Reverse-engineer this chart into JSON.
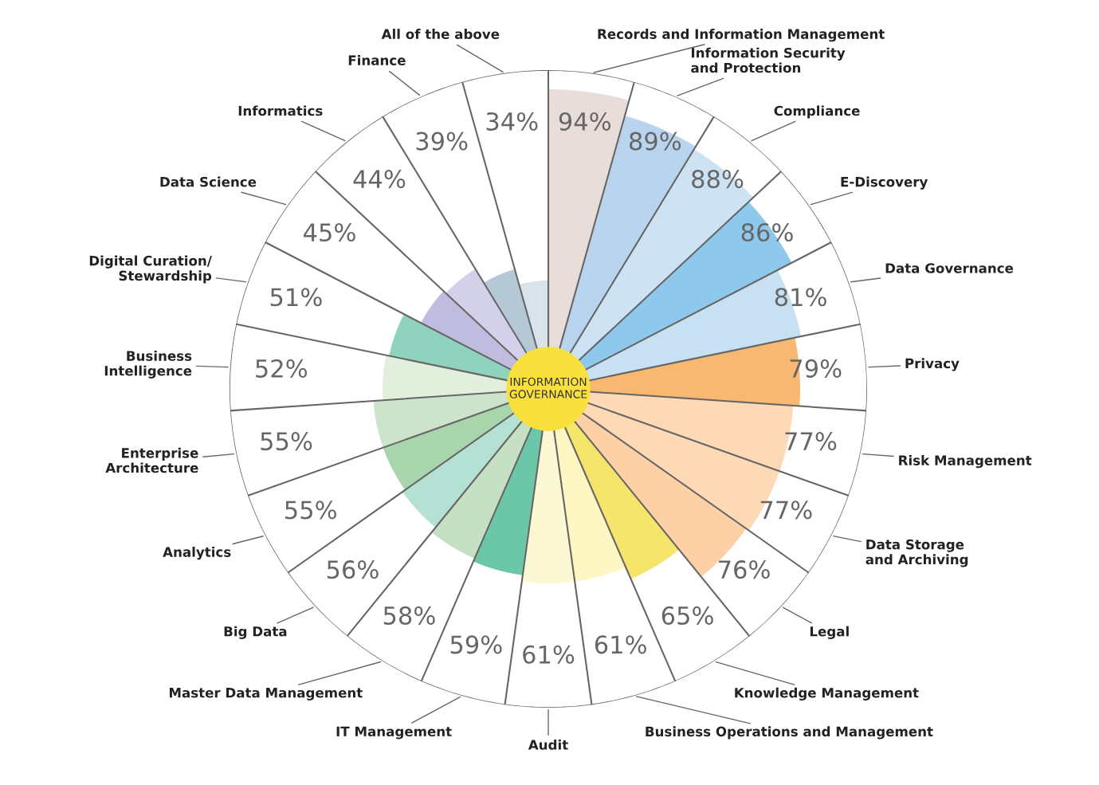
{
  "chart_data": {
    "type": "other",
    "title": "INFORMATION\nGOVERNANCE",
    "categories": [
      "Records and Information Management",
      "Information Security\nand Protection",
      "Compliance",
      "E-Discovery",
      "Data Governance",
      "Privacy",
      "Risk Management",
      "Data Storage\nand Archiving",
      "Legal",
      "Knowledge Management",
      "Business Operations and Management",
      "Audit",
      "IT Management",
      "Master Data Management",
      "Big Data",
      "Analytics",
      "Enterprise\nArchitecture",
      "Business\nIntelligence",
      "Digital Curation/\nStewardship",
      "Data Science",
      "Informatics",
      "Finance",
      "All of the above"
    ],
    "values": [
      94,
      89,
      88,
      86,
      81,
      79,
      77,
      77,
      76,
      65,
      61,
      61,
      59,
      58,
      56,
      55,
      55,
      52,
      51,
      45,
      44,
      39,
      34
    ],
    "value_labels": [
      "94%",
      "89%",
      "88%",
      "86%",
      "81%",
      "79%",
      "77%",
      "77%",
      "76%",
      "65%",
      "61%",
      "61%",
      "59%",
      "58%",
      "56%",
      "55%",
      "55%",
      "52%",
      "51%",
      "45%",
      "44%",
      "39%",
      "34%"
    ],
    "colors": [
      "#e8ddd8",
      "#b9d4ee",
      "#cde3f3",
      "#8ec8ec",
      "#c7e1f3",
      "#f9b872",
      "#fdd9b5",
      "#fdd9b5",
      "#fdd0a6",
      "#f5e56b",
      "#fef6c3",
      "#fdf8d4",
      "#6cc6a8",
      "#c6e0c4",
      "#b5e0d4",
      "#a8d5ab",
      "#cde4cc",
      "#e3efdd",
      "#8fd3be",
      "#c0bcdf",
      "#d3d0ea",
      "#b5c8d6",
      "#d8e3ec"
    ]
  }
}
